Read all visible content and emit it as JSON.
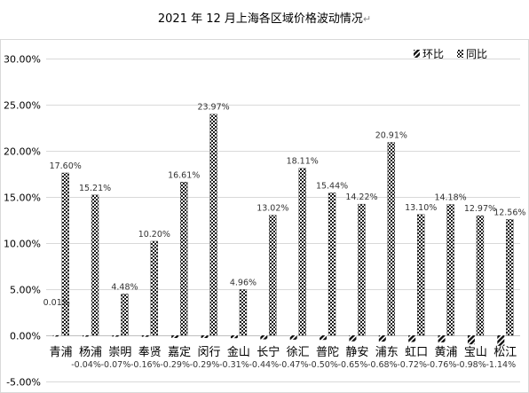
{
  "chart_data": {
    "type": "bar",
    "title": "2021 年 12 月上海各区域价格波动情况",
    "xlabel": "",
    "ylabel": "",
    "ylim": [
      -0.05,
      0.3
    ],
    "yticks": [
      "-5.00%",
      "0.00%",
      "5.00%",
      "10.00%",
      "15.00%",
      "20.00%",
      "25.00%",
      "30.00%"
    ],
    "grid": true,
    "legend_position": "top-right",
    "categories": [
      "青浦",
      "杨浦",
      "崇明",
      "奉贤",
      "嘉定",
      "闵行",
      "金山",
      "长宁",
      "徐汇",
      "普陀",
      "静安",
      "浦东",
      "虹口",
      "黄浦",
      "宝山",
      "松江"
    ],
    "series": [
      {
        "name": "环比",
        "values": [
          0.0001,
          -0.0004,
          -0.0007,
          -0.0016,
          -0.0029,
          -0.0029,
          -0.0031,
          -0.0044,
          -0.0047,
          -0.005,
          -0.0065,
          -0.0068,
          -0.0072,
          -0.0076,
          -0.0098,
          -0.0114
        ],
        "labels": [
          "0.01%",
          "-0.04%",
          "-0.07%",
          "-0.16%",
          "-0.29%",
          "-0.29%",
          "-0.31%",
          "-0.44%",
          "-0.47%",
          "-0.50%",
          "-0.65%",
          "-0.68%",
          "-0.72%",
          "-0.76%",
          "-0.98%",
          "-1.14%"
        ]
      },
      {
        "name": "同比",
        "values": [
          0.176,
          0.1521,
          0.0448,
          0.102,
          0.1661,
          0.2397,
          0.0496,
          0.1302,
          0.1811,
          0.1544,
          0.1422,
          0.2091,
          0.131,
          0.1418,
          0.1297,
          0.1256
        ],
        "labels": [
          "17.60%",
          "15.21%",
          "4.48%",
          "10.20%",
          "16.61%",
          "23.97%",
          "4.96%",
          "13.02%",
          "18.11%",
          "15.44%",
          "14.22%",
          "20.91%",
          "13.10%",
          "14.18%",
          "12.97%",
          "12.56%"
        ]
      }
    ]
  },
  "title_mark": "↵"
}
